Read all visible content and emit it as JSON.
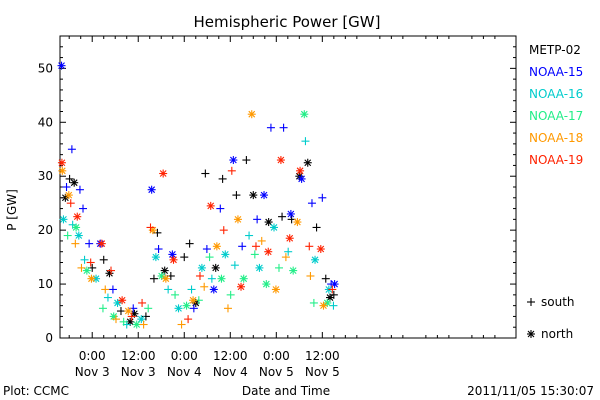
{
  "chart_data": {
    "type": "scatter",
    "title": "Hemispheric Power [GW]",
    "xlabel": "Date and Time",
    "ylabel": "P [GW]",
    "x_unit": "hours after 2011-11-02 00:00",
    "xlim": [
      15.6,
      134.5
    ],
    "ylim": [
      0,
      56
    ],
    "yticks": [
      0,
      10,
      20,
      30,
      40,
      50
    ],
    "xticks": [
      {
        "x": 24,
        "time": "0:00",
        "date": "Nov 3"
      },
      {
        "x": 36,
        "time": "12:00",
        "date": "Nov 3"
      },
      {
        "x": 48,
        "time": "0:00",
        "date": "Nov 4"
      },
      {
        "x": 60,
        "time": "12:00",
        "date": "Nov 4"
      },
      {
        "x": 72,
        "time": "0:00",
        "date": "Nov 5"
      },
      {
        "x": 84,
        "time": "12:00",
        "date": "Nov 5"
      }
    ],
    "marker_legend": [
      {
        "symbol": "+",
        "label": "south"
      },
      {
        "symbol": "*",
        "label": "north"
      }
    ],
    "series": [
      {
        "name": "METP-02",
        "color": "#000000",
        "points": [
          {
            "x": 17.0,
            "y": 26.0,
            "m": "*"
          },
          {
            "x": 18.1,
            "y": 29.5,
            "m": "+"
          },
          {
            "x": 19.3,
            "y": 28.8,
            "m": "*"
          },
          {
            "x": 24.0,
            "y": 13.0,
            "m": "+"
          },
          {
            "x": 27.0,
            "y": 14.5,
            "m": "+"
          },
          {
            "x": 28.5,
            "y": 12.0,
            "m": "*"
          },
          {
            "x": 31.5,
            "y": 5.0,
            "m": "+"
          },
          {
            "x": 33.9,
            "y": 3.0,
            "m": "*"
          },
          {
            "x": 35.0,
            "y": 4.5,
            "m": "*"
          },
          {
            "x": 38.0,
            "y": 4.0,
            "m": "+"
          },
          {
            "x": 40.1,
            "y": 11.0,
            "m": "+"
          },
          {
            "x": 41.0,
            "y": 19.5,
            "m": "+"
          },
          {
            "x": 42.9,
            "y": 12.5,
            "m": "*"
          },
          {
            "x": 44.5,
            "y": 11.5,
            "m": "+"
          },
          {
            "x": 48.0,
            "y": 15.0,
            "m": "+"
          },
          {
            "x": 49.4,
            "y": 17.5,
            "m": "+"
          },
          {
            "x": 51.0,
            "y": 6.5,
            "m": "*"
          },
          {
            "x": 53.5,
            "y": 30.5,
            "m": "+"
          },
          {
            "x": 56.2,
            "y": 13.0,
            "m": "*"
          },
          {
            "x": 58.0,
            "y": 29.5,
            "m": "+"
          },
          {
            "x": 61.6,
            "y": 26.5,
            "m": "+"
          },
          {
            "x": 64.2,
            "y": 33.0,
            "m": "+"
          },
          {
            "x": 66.0,
            "y": 26.5,
            "m": "*"
          },
          {
            "x": 70.0,
            "y": 21.5,
            "m": "*"
          },
          {
            "x": 73.5,
            "y": 22.5,
            "m": "+"
          },
          {
            "x": 76.0,
            "y": 22.0,
            "m": "+"
          },
          {
            "x": 78.0,
            "y": 30.0,
            "m": "*"
          },
          {
            "x": 80.2,
            "y": 32.5,
            "m": "*"
          },
          {
            "x": 82.5,
            "y": 20.5,
            "m": "+"
          },
          {
            "x": 84.9,
            "y": 11.0,
            "m": "+"
          },
          {
            "x": 86.0,
            "y": 7.5,
            "m": "*"
          },
          {
            "x": 87.0,
            "y": 8.0,
            "m": "+"
          }
        ]
      },
      {
        "name": "NOAA-15",
        "color": "#0000ff",
        "points": [
          {
            "x": 16.0,
            "y": 50.5,
            "m": "*"
          },
          {
            "x": 17.3,
            "y": 28.0,
            "m": "+"
          },
          {
            "x": 18.7,
            "y": 35.0,
            "m": "+"
          },
          {
            "x": 20.8,
            "y": 27.5,
            "m": "+"
          },
          {
            "x": 21.6,
            "y": 24.0,
            "m": "+"
          },
          {
            "x": 23.2,
            "y": 17.5,
            "m": "+"
          },
          {
            "x": 26.1,
            "y": 17.5,
            "m": "*"
          },
          {
            "x": 29.4,
            "y": 9.0,
            "m": "+"
          },
          {
            "x": 34.7,
            "y": 5.5,
            "m": "+"
          },
          {
            "x": 39.5,
            "y": 27.5,
            "m": "*"
          },
          {
            "x": 41.3,
            "y": 16.5,
            "m": "+"
          },
          {
            "x": 44.9,
            "y": 15.5,
            "m": "*"
          },
          {
            "x": 50.5,
            "y": 5.5,
            "m": "+"
          },
          {
            "x": 53.9,
            "y": 16.5,
            "m": "+"
          },
          {
            "x": 55.7,
            "y": 9.0,
            "m": "*"
          },
          {
            "x": 57.4,
            "y": 24.0,
            "m": "+"
          },
          {
            "x": 60.8,
            "y": 33.0,
            "m": "*"
          },
          {
            "x": 63.1,
            "y": 17.0,
            "m": "+"
          },
          {
            "x": 67.0,
            "y": 22.0,
            "m": "+"
          },
          {
            "x": 68.8,
            "y": 26.5,
            "m": "*"
          },
          {
            "x": 70.6,
            "y": 39.0,
            "m": "+"
          },
          {
            "x": 73.9,
            "y": 39.0,
            "m": "+"
          },
          {
            "x": 75.8,
            "y": 23.0,
            "m": "*"
          },
          {
            "x": 78.6,
            "y": 29.5,
            "m": "*"
          },
          {
            "x": 81.3,
            "y": 25.0,
            "m": "+"
          },
          {
            "x": 84.0,
            "y": 26.0,
            "m": "+"
          },
          {
            "x": 86.3,
            "y": 10.0,
            "m": "+"
          },
          {
            "x": 87.2,
            "y": 10.0,
            "m": "*"
          }
        ]
      },
      {
        "name": "NOAA-16",
        "color": "#00cccc",
        "points": [
          {
            "x": 16.5,
            "y": 22.0,
            "m": "*"
          },
          {
            "x": 18.9,
            "y": 21.0,
            "m": "+"
          },
          {
            "x": 20.5,
            "y": 19.0,
            "m": "*"
          },
          {
            "x": 22.0,
            "y": 14.5,
            "m": "+"
          },
          {
            "x": 25.0,
            "y": 11.0,
            "m": "*"
          },
          {
            "x": 28.1,
            "y": 7.5,
            "m": "+"
          },
          {
            "x": 30.6,
            "y": 6.5,
            "m": "*"
          },
          {
            "x": 33.0,
            "y": 2.5,
            "m": "+"
          },
          {
            "x": 36.8,
            "y": 3.5,
            "m": "*"
          },
          {
            "x": 40.6,
            "y": 15.0,
            "m": "*"
          },
          {
            "x": 43.8,
            "y": 9.0,
            "m": "+"
          },
          {
            "x": 46.5,
            "y": 5.5,
            "m": "*"
          },
          {
            "x": 49.9,
            "y": 9.0,
            "m": "+"
          },
          {
            "x": 52.6,
            "y": 13.0,
            "m": "*"
          },
          {
            "x": 55.2,
            "y": 11.0,
            "m": "+"
          },
          {
            "x": 58.7,
            "y": 15.5,
            "m": "*"
          },
          {
            "x": 61.2,
            "y": 13.5,
            "m": "+"
          },
          {
            "x": 64.9,
            "y": 19.0,
            "m": "+"
          },
          {
            "x": 67.6,
            "y": 13.0,
            "m": "*"
          },
          {
            "x": 71.4,
            "y": 20.5,
            "m": "*"
          },
          {
            "x": 75.1,
            "y": 16.0,
            "m": "+"
          },
          {
            "x": 79.6,
            "y": 36.5,
            "m": "+"
          },
          {
            "x": 82.1,
            "y": 14.5,
            "m": "*"
          },
          {
            "x": 85.7,
            "y": 9.0,
            "m": "*"
          },
          {
            "x": 86.9,
            "y": 6.0,
            "m": "+"
          }
        ]
      },
      {
        "name": "NOAA-17",
        "color": "#22ee88",
        "points": [
          {
            "x": 17.6,
            "y": 19.0,
            "m": "+"
          },
          {
            "x": 19.8,
            "y": 20.5,
            "m": "*"
          },
          {
            "x": 22.6,
            "y": 12.5,
            "m": "*"
          },
          {
            "x": 26.8,
            "y": 5.5,
            "m": "+"
          },
          {
            "x": 29.6,
            "y": 4.0,
            "m": "*"
          },
          {
            "x": 32.2,
            "y": 3.0,
            "m": "+"
          },
          {
            "x": 35.6,
            "y": 2.5,
            "m": "*"
          },
          {
            "x": 38.6,
            "y": 5.5,
            "m": "+"
          },
          {
            "x": 42.1,
            "y": 11.5,
            "m": "*"
          },
          {
            "x": 45.6,
            "y": 8.0,
            "m": "+"
          },
          {
            "x": 48.6,
            "y": 6.0,
            "m": "*"
          },
          {
            "x": 51.8,
            "y": 7.0,
            "m": "+"
          },
          {
            "x": 54.6,
            "y": 15.0,
            "m": "+"
          },
          {
            "x": 57.7,
            "y": 11.0,
            "m": "*"
          },
          {
            "x": 60.1,
            "y": 8.0,
            "m": "+"
          },
          {
            "x": 63.5,
            "y": 11.0,
            "m": "*"
          },
          {
            "x": 66.4,
            "y": 15.5,
            "m": "+"
          },
          {
            "x": 69.4,
            "y": 10.0,
            "m": "*"
          },
          {
            "x": 72.7,
            "y": 13.0,
            "m": "+"
          },
          {
            "x": 76.4,
            "y": 12.5,
            "m": "*"
          },
          {
            "x": 79.3,
            "y": 41.5,
            "m": "*"
          },
          {
            "x": 81.8,
            "y": 6.5,
            "m": "+"
          },
          {
            "x": 85.3,
            "y": 6.5,
            "m": "*"
          }
        ]
      },
      {
        "name": "NOAA-18",
        "color": "#ff9900",
        "points": [
          {
            "x": 16.2,
            "y": 31.0,
            "m": "*"
          },
          {
            "x": 17.9,
            "y": 26.5,
            "m": "*"
          },
          {
            "x": 19.6,
            "y": 17.5,
            "m": "+"
          },
          {
            "x": 21.2,
            "y": 13.0,
            "m": "+"
          },
          {
            "x": 23.8,
            "y": 11.0,
            "m": "*"
          },
          {
            "x": 27.4,
            "y": 9.0,
            "m": "+"
          },
          {
            "x": 30.2,
            "y": 3.5,
            "m": "+"
          },
          {
            "x": 33.4,
            "y": 5.0,
            "m": "*"
          },
          {
            "x": 37.4,
            "y": 2.5,
            "m": "+"
          },
          {
            "x": 39.8,
            "y": 20.0,
            "m": "*"
          },
          {
            "x": 43.2,
            "y": 11.0,
            "m": "*"
          },
          {
            "x": 47.3,
            "y": 2.5,
            "m": "+"
          },
          {
            "x": 50.3,
            "y": 7.0,
            "m": "*"
          },
          {
            "x": 53.2,
            "y": 9.5,
            "m": "+"
          },
          {
            "x": 56.5,
            "y": 17.0,
            "m": "*"
          },
          {
            "x": 59.4,
            "y": 5.5,
            "m": "+"
          },
          {
            "x": 62.0,
            "y": 22.0,
            "m": "*"
          },
          {
            "x": 65.6,
            "y": 41.5,
            "m": "*"
          },
          {
            "x": 68.2,
            "y": 18.0,
            "m": "+"
          },
          {
            "x": 71.9,
            "y": 9.0,
            "m": "*"
          },
          {
            "x": 74.5,
            "y": 15.0,
            "m": "+"
          },
          {
            "x": 77.5,
            "y": 21.5,
            "m": "*"
          },
          {
            "x": 80.9,
            "y": 11.5,
            "m": "+"
          },
          {
            "x": 84.3,
            "y": 6.0,
            "m": "*"
          }
        ]
      },
      {
        "name": "NOAA-19",
        "color": "#ff2200",
        "points": [
          {
            "x": 16.1,
            "y": 32.5,
            "m": "*"
          },
          {
            "x": 18.4,
            "y": 25.0,
            "m": "+"
          },
          {
            "x": 20.1,
            "y": 22.5,
            "m": "*"
          },
          {
            "x": 23.6,
            "y": 14.0,
            "m": "+"
          },
          {
            "x": 26.5,
            "y": 17.5,
            "m": "*"
          },
          {
            "x": 28.9,
            "y": 12.5,
            "m": "+"
          },
          {
            "x": 31.8,
            "y": 7.0,
            "m": "*"
          },
          {
            "x": 34.3,
            "y": 4.0,
            "m": "+"
          },
          {
            "x": 37.0,
            "y": 6.5,
            "m": "+"
          },
          {
            "x": 39.2,
            "y": 20.5,
            "m": "+"
          },
          {
            "x": 42.5,
            "y": 30.5,
            "m": "*"
          },
          {
            "x": 45.2,
            "y": 14.5,
            "m": "*"
          },
          {
            "x": 49.0,
            "y": 3.5,
            "m": "+"
          },
          {
            "x": 52.1,
            "y": 11.5,
            "m": "+"
          },
          {
            "x": 54.9,
            "y": 24.5,
            "m": "*"
          },
          {
            "x": 58.3,
            "y": 20.0,
            "m": "+"
          },
          {
            "x": 60.4,
            "y": 31.0,
            "m": "+"
          },
          {
            "x": 62.8,
            "y": 9.5,
            "m": "*"
          },
          {
            "x": 66.7,
            "y": 17.0,
            "m": "+"
          },
          {
            "x": 69.9,
            "y": 16.0,
            "m": "*"
          },
          {
            "x": 73.2,
            "y": 33.0,
            "m": "*"
          },
          {
            "x": 75.5,
            "y": 18.5,
            "m": "*"
          },
          {
            "x": 78.2,
            "y": 31.0,
            "m": "*"
          },
          {
            "x": 80.6,
            "y": 17.0,
            "m": "+"
          },
          {
            "x": 83.6,
            "y": 16.5,
            "m": "*"
          },
          {
            "x": 86.6,
            "y": 9.0,
            "m": "+"
          }
        ]
      }
    ]
  },
  "footer": {
    "plot_by": "Plot: CCMC",
    "timestamp": "2011/11/05 15:30:07"
  }
}
